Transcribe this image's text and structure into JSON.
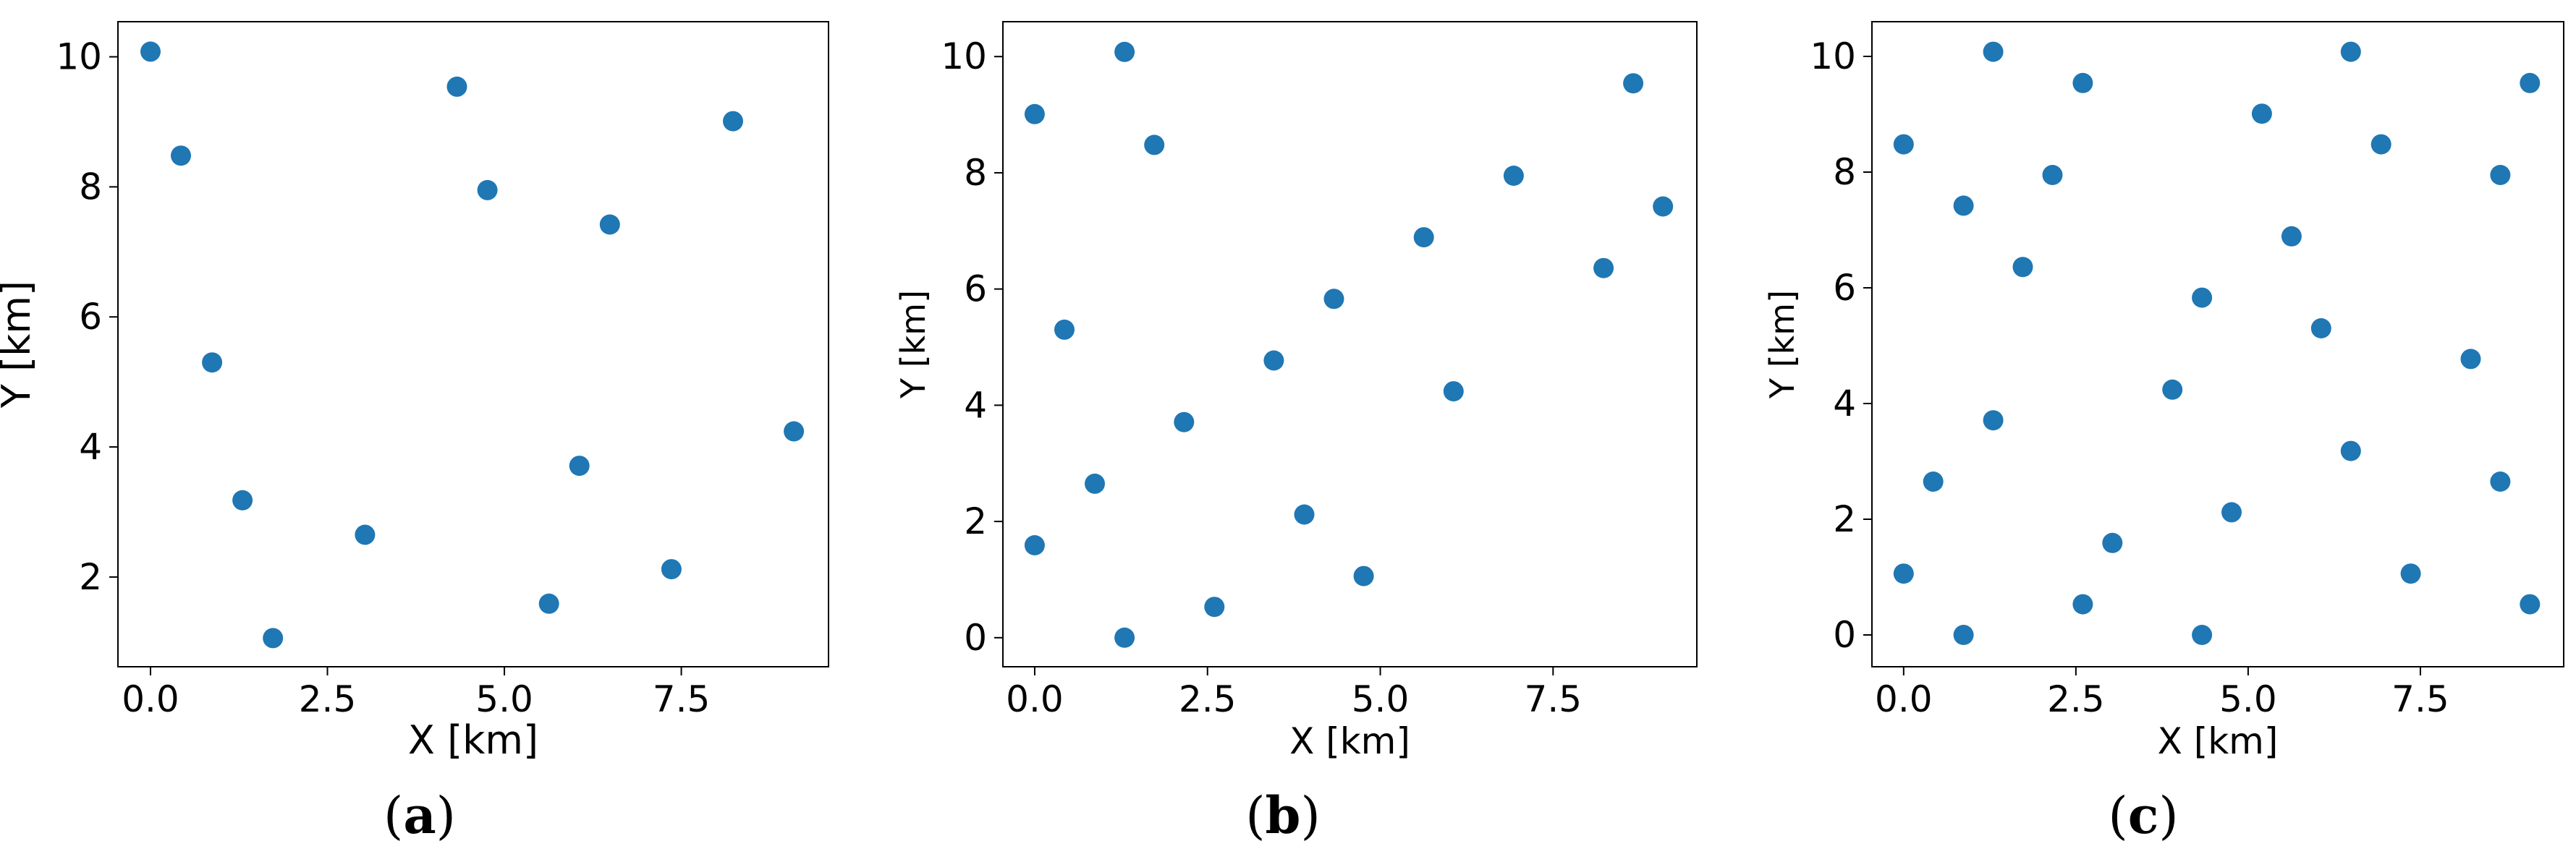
{
  "colors": {
    "marker": "#1f77b4",
    "frame": "#000000",
    "background": "#ffffff"
  },
  "chart_data": [
    {
      "type": "scatter",
      "caption": "a",
      "xlabel": "X [km]",
      "ylabel": "Y [km]",
      "xlim": [
        -0.46,
        9.58
      ],
      "ylim": [
        0.62,
        10.54
      ],
      "xticks": [
        0.0,
        2.5,
        5.0,
        7.5
      ],
      "xtick_labels": [
        "0.0",
        "2.5",
        "5.0",
        "7.5"
      ],
      "yticks": [
        2,
        4,
        6,
        8,
        10
      ],
      "ytick_labels": [
        "2",
        "4",
        "6",
        "8",
        "10"
      ],
      "grid": false,
      "points": [
        [
          0.0,
          10.08
        ],
        [
          0.43,
          8.48
        ],
        [
          0.87,
          5.3
        ],
        [
          1.3,
          3.18
        ],
        [
          1.73,
          1.06
        ],
        [
          3.03,
          2.65
        ],
        [
          4.33,
          9.54
        ],
        [
          4.76,
          7.95
        ],
        [
          5.63,
          1.59
        ],
        [
          6.06,
          3.71
        ],
        [
          6.49,
          7.42
        ],
        [
          7.36,
          2.12
        ],
        [
          8.23,
          9.01
        ],
        [
          9.09,
          4.24
        ]
      ]
    },
    {
      "type": "scatter",
      "caption": "b",
      "xlabel": "X [km]",
      "ylabel": "Y [km]",
      "xlim": [
        -0.46,
        9.58
      ],
      "ylim": [
        -0.5,
        10.6
      ],
      "xticks": [
        0.0,
        2.5,
        5.0,
        7.5
      ],
      "xtick_labels": [
        "0.0",
        "2.5",
        "5.0",
        "7.5"
      ],
      "yticks": [
        0,
        2,
        4,
        6,
        8,
        10
      ],
      "ytick_labels": [
        "0",
        "2",
        "4",
        "6",
        "8",
        "10"
      ],
      "grid": false,
      "points": [
        [
          0.0,
          9.01
        ],
        [
          0.0,
          1.59
        ],
        [
          0.43,
          5.3
        ],
        [
          0.87,
          2.65
        ],
        [
          1.3,
          10.08
        ],
        [
          1.3,
          0.0
        ],
        [
          1.73,
          8.48
        ],
        [
          2.16,
          3.71
        ],
        [
          2.6,
          0.53
        ],
        [
          3.46,
          4.77
        ],
        [
          3.9,
          2.12
        ],
        [
          4.33,
          5.83
        ],
        [
          4.76,
          1.06
        ],
        [
          5.63,
          6.89
        ],
        [
          6.06,
          4.24
        ],
        [
          6.93,
          7.95
        ],
        [
          8.23,
          6.36
        ],
        [
          8.66,
          9.54
        ],
        [
          9.09,
          7.42
        ]
      ]
    },
    {
      "type": "scatter",
      "caption": "c",
      "xlabel": "X [km]",
      "ylabel": "Y [km]",
      "xlim": [
        -0.46,
        9.58
      ],
      "ylim": [
        -0.55,
        10.6
      ],
      "xticks": [
        0.0,
        2.5,
        5.0,
        7.5
      ],
      "xtick_labels": [
        "0.0",
        "2.5",
        "5.0",
        "7.5"
      ],
      "yticks": [
        0,
        2,
        4,
        6,
        8,
        10
      ],
      "ytick_labels": [
        "0",
        "2",
        "4",
        "6",
        "8",
        "10"
      ],
      "grid": false,
      "points": [
        [
          0.0,
          8.48
        ],
        [
          0.0,
          1.06
        ],
        [
          0.43,
          2.65
        ],
        [
          0.87,
          7.42
        ],
        [
          0.87,
          0.0
        ],
        [
          1.3,
          10.08
        ],
        [
          1.3,
          3.71
        ],
        [
          1.73,
          6.36
        ],
        [
          2.16,
          7.95
        ],
        [
          2.6,
          9.54
        ],
        [
          2.6,
          0.53
        ],
        [
          3.03,
          1.59
        ],
        [
          3.9,
          4.24
        ],
        [
          4.33,
          5.83
        ],
        [
          4.33,
          0.0
        ],
        [
          4.76,
          2.12
        ],
        [
          5.2,
          9.01
        ],
        [
          5.63,
          6.89
        ],
        [
          6.06,
          5.3
        ],
        [
          6.49,
          10.08
        ],
        [
          6.49,
          3.18
        ],
        [
          6.93,
          8.48
        ],
        [
          7.36,
          1.06
        ],
        [
          8.23,
          4.77
        ],
        [
          8.66,
          7.95
        ],
        [
          8.66,
          2.65
        ],
        [
          9.09,
          9.54
        ],
        [
          9.09,
          0.53
        ]
      ]
    }
  ]
}
